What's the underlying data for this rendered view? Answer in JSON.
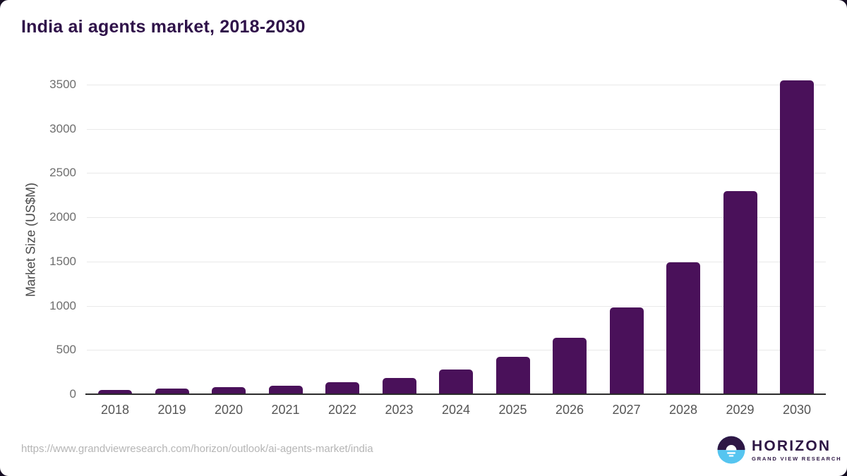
{
  "page": {
    "title": "India ai agents market, 2018-2030"
  },
  "chart_data": {
    "type": "bar",
    "title": "India ai agents market, 2018-2030",
    "categories": [
      "2018",
      "2019",
      "2020",
      "2021",
      "2022",
      "2023",
      "2024",
      "2025",
      "2026",
      "2027",
      "2028",
      "2029",
      "2030"
    ],
    "values": [
      45,
      65,
      80,
      100,
      135,
      185,
      280,
      425,
      640,
      980,
      1490,
      2300,
      3550
    ],
    "xlabel": "",
    "ylabel": "Market Size (US$M)",
    "ylim": [
      0,
      3500
    ],
    "yticks": [
      0,
      500,
      1000,
      1500,
      2000,
      2500,
      3000,
      3500
    ],
    "grid": true,
    "legend": false
  },
  "footer": {
    "source_url": "https://www.grandviewresearch.com/horizon/outlook/ai-agents-market/india",
    "logo": {
      "brand": "HORIZON",
      "sub_brand": "GRAND VIEW RESEARCH"
    }
  },
  "colors": {
    "bar": "#4A115A",
    "title_text": "#2F1249",
    "axis_line": "#2B2B2B",
    "gridline": "#E9E9E9",
    "tick_label": "#6E6E6E",
    "axis_label": "#4A4A4A",
    "url_text": "#B5B5B5",
    "logo_dark": "#2E1745",
    "logo_blue": "#56C5F0",
    "backdrop": "#150D22"
  }
}
